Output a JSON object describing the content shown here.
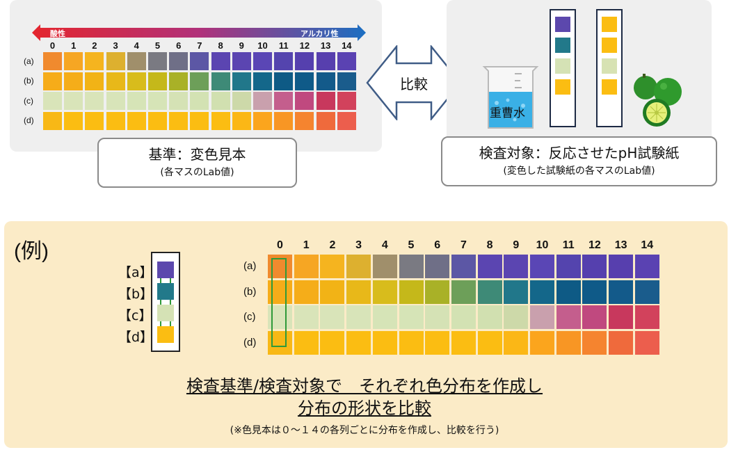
{
  "top_left": {
    "acid_label": "酸性",
    "alkali_label": "アルカリ性",
    "box_title": "基準：変色見本",
    "box_sub": "(各マスのLab値)"
  },
  "compare_label": "比較",
  "top_right": {
    "beaker_label": "重曹水",
    "box_title": "検査対象：反応させたpH試験紙",
    "box_sub": "(変色した試験紙の各マスのLab値)"
  },
  "columns": [
    "0",
    "1",
    "2",
    "3",
    "4",
    "5",
    "6",
    "7",
    "8",
    "9",
    "10",
    "11",
    "12",
    "13",
    "14"
  ],
  "rows": [
    "(a)",
    "(b)",
    "(c)",
    "(d)"
  ],
  "colors": {
    "a": [
      "#f08a2e",
      "#f6a623",
      "#f5b41f",
      "#ddb02f",
      "#a08f6b",
      "#7a7a82",
      "#6f6f87",
      "#5c57a5",
      "#5b45b1",
      "#5b45b1",
      "#5a46b5",
      "#5444ae",
      "#5540ae",
      "#573fae",
      "#5a42b2"
    ],
    "b": [
      "#f6ac19",
      "#f5ad19",
      "#f2b316",
      "#e8b819",
      "#d8bc1c",
      "#c5b81a",
      "#a9b127",
      "#6d9f59",
      "#3e8a77",
      "#21778a",
      "#14678a",
      "#0e5a85",
      "#0f5a88",
      "#135a8a",
      "#1a5c8c"
    ],
    "c": [
      "#d9e4b9",
      "#d9e4b9",
      "#d9e4b9",
      "#d8e4b9",
      "#d6e4b7",
      "#d6e4b7",
      "#d5e2b5",
      "#d3e2b3",
      "#d1e0b0",
      "#cdd9a9",
      "#c9a0ad",
      "#c45e8d",
      "#c0497f",
      "#c8385d",
      "#d2425c"
    ],
    "d": [
      "#f8b816",
      "#fbbd12",
      "#fbbd12",
      "#fbbd12",
      "#fbbd12",
      "#fbbd12",
      "#fbbd12",
      "#fbbd12",
      "#fbbd12",
      "#fbb716",
      "#fba51d",
      "#f89624",
      "#f5842f",
      "#ef6a3c",
      "#ec5e4d"
    ]
  },
  "strip_blue": [
    "#5c48ad",
    "#22798a",
    "#d5e2b5",
    "#fbbd12"
  ],
  "strip_yellow": [
    "#fbbd12",
    "#fbbd12",
    "#d7e2b3",
    "#fbbd12"
  ],
  "example": {
    "title": "(例)",
    "labels": [
      "【a】",
      "【b】",
      "【c】",
      "【d】"
    ],
    "conclusion_line1": "検査基準/検査対象で　それぞれ色分布を作成し",
    "conclusion_line2": "分布の形状を比較",
    "note": "(※色見本は０～１４の各列ごとに分布を作成し、比較を行う)"
  }
}
